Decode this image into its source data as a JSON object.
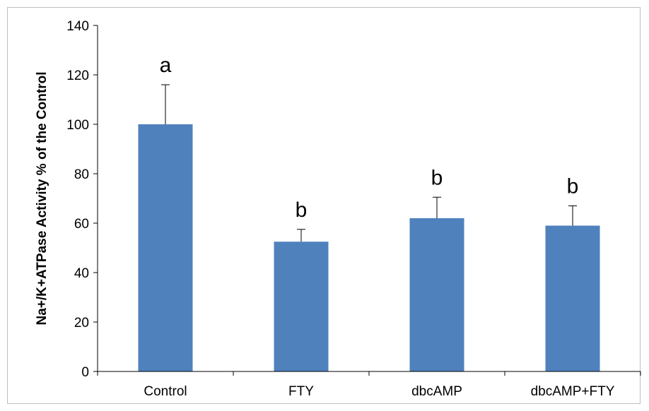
{
  "chart_data": {
    "type": "bar",
    "title": "",
    "xlabel": "",
    "ylabel": "Na+/K+ATPase Activity % of the Control",
    "ylim": [
      0,
      140
    ],
    "yticks": [
      0,
      20,
      40,
      60,
      80,
      100,
      120,
      140
    ],
    "grid": false,
    "legend": "none",
    "bar_color": "#4f81bd",
    "categories": [
      "Control",
      "FTY",
      "dbcAMP",
      "dbcAMP+FTY"
    ],
    "values": [
      100,
      52.5,
      62,
      59
    ],
    "errors": [
      16,
      5,
      8.5,
      8
    ],
    "annotations": [
      "a",
      "b",
      "b",
      "b"
    ]
  }
}
